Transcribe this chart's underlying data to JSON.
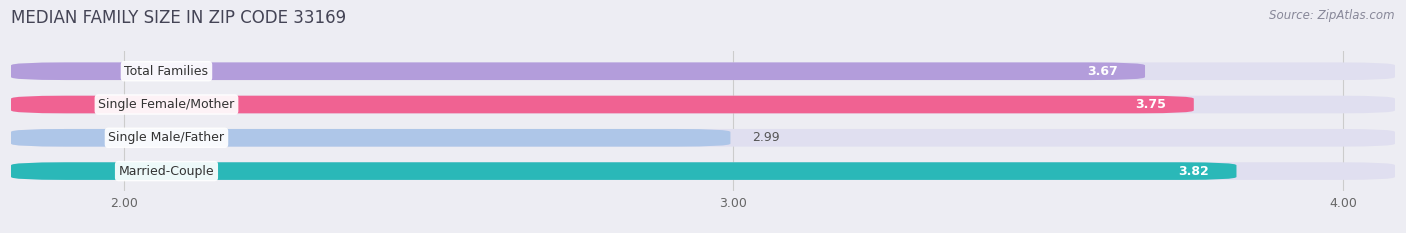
{
  "title": "MEDIAN FAMILY SIZE IN ZIP CODE 33169",
  "source": "Source: ZipAtlas.com",
  "categories": [
    "Married-Couple",
    "Single Male/Father",
    "Single Female/Mother",
    "Total Families"
  ],
  "values": [
    3.82,
    2.99,
    3.75,
    3.67
  ],
  "bar_colors": [
    "#2ab8b8",
    "#aec6e8",
    "#f06292",
    "#b39ddb"
  ],
  "label_colors": [
    "#ffffff",
    "#555555",
    "#ffffff",
    "#ffffff"
  ],
  "xlim": [
    1.82,
    4.08
  ],
  "xticks": [
    2.0,
    3.0,
    4.0
  ],
  "xtick_labels": [
    "2.00",
    "3.00",
    "4.00"
  ],
  "background_color": "#ededf3",
  "bar_background_color": "#e0dff0",
  "title_fontsize": 12,
  "source_fontsize": 8.5,
  "label_fontsize": 9,
  "value_fontsize": 9,
  "bar_height": 0.52
}
